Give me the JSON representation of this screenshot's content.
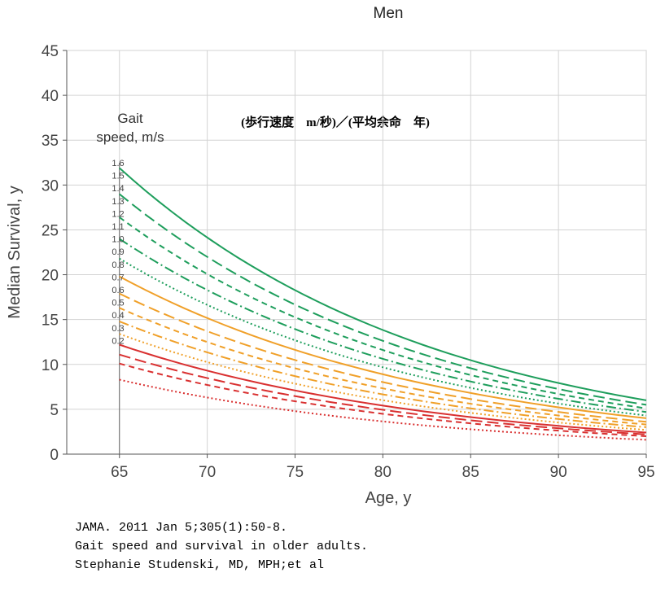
{
  "chart_data": {
    "type": "line",
    "title": "Men",
    "subtitle": "(歩行速度　m/秒)／(平均余命　年)",
    "xlabel": "Age, y",
    "ylabel": "Median Survival, y",
    "xlim": [
      62,
      95
    ],
    "ylim": [
      0,
      45
    ],
    "xticks": [
      65,
      70,
      75,
      80,
      85,
      90,
      95
    ],
    "yticks": [
      0,
      5,
      10,
      15,
      20,
      25,
      30,
      35,
      40,
      45
    ],
    "grid": true,
    "legend_title": "Gait speed, m/s",
    "legend_title_lines": [
      "Gait",
      "speed, m/s"
    ],
    "x": [
      65,
      95
    ],
    "series": [
      {
        "name": "1.6",
        "color": "#1e9e5c",
        "dash": "solid",
        "values": [
          31.9,
          6.0
        ]
      },
      {
        "name": "1.5",
        "color": "#1e9e5c",
        "dash": "longdash",
        "values": [
          29.0,
          5.5
        ]
      },
      {
        "name": "1.4",
        "color": "#1e9e5c",
        "dash": "dash",
        "values": [
          26.4,
          5.1
        ]
      },
      {
        "name": "1.3",
        "color": "#1e9e5c",
        "dash": "dashdot",
        "values": [
          24.0,
          4.7
        ]
      },
      {
        "name": "1.2",
        "color": "#1e9e5c",
        "dash": "dot",
        "values": [
          21.8,
          4.3
        ]
      },
      {
        "name": "1.1",
        "color": "#1e9e5c",
        "dash": "dot",
        "values": [
          21.8,
          4.3
        ],
        "label_only": true
      },
      {
        "name": "1.0",
        "color": "#f0a029",
        "dash": "solid",
        "values": [
          19.8,
          4.0
        ]
      },
      {
        "name": "0.9",
        "color": "#f0a029",
        "dash": "longdash",
        "values": [
          17.9,
          3.6
        ]
      },
      {
        "name": "0.8",
        "color": "#f0a029",
        "dash": "dash",
        "values": [
          16.3,
          3.3
        ]
      },
      {
        "name": "0.7",
        "color": "#f0a029",
        "dash": "dashdot",
        "values": [
          14.8,
          3.0
        ]
      },
      {
        "name": "0.6",
        "color": "#f0a029",
        "dash": "dot",
        "values": [
          13.4,
          2.7
        ]
      },
      {
        "name": "0.5",
        "color": "#d93030",
        "dash": "solid",
        "values": [
          12.2,
          2.4
        ]
      },
      {
        "name": "0.4",
        "color": "#d93030",
        "dash": "longdash",
        "values": [
          11.1,
          2.2
        ]
      },
      {
        "name": "0.3",
        "color": "#d93030",
        "dash": "dash",
        "values": [
          10.1,
          2.0
        ]
      },
      {
        "name": "0.2",
        "color": "#d93030",
        "dash": "dot",
        "values": [
          8.3,
          1.6
        ]
      }
    ]
  },
  "citation": {
    "line1": "JAMA. 2011 Jan 5;305(1):50-8.",
    "line2": "Gait speed and survival in older adults.",
    "line3": "Stephanie Studenski, MD, MPH;et al"
  }
}
